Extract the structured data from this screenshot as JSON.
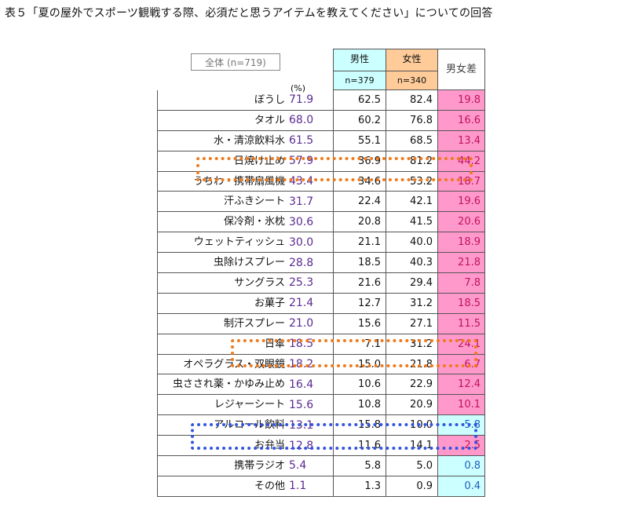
{
  "title": "表５「夏の屋外でスポーツ観戦する際、必須だと思うアイテムを教えてください」についての回答",
  "header": {
    "total": "全体 (n=719)",
    "pct": "(%)",
    "male": "男性",
    "male_n": "n=379",
    "female": "女性",
    "female_n": "n=340",
    "diff": "男女差"
  },
  "colors": {
    "male": "#ccffff",
    "female": "#ffcc99",
    "diff_pos": "#ff99cc",
    "diff_neg": "#ccffff",
    "highlight_orange": "#f07a1a",
    "highlight_blue": "#3355dd"
  },
  "chart_data": {
    "type": "table",
    "columns": [
      "全体",
      "男性",
      "女性",
      "男女差"
    ],
    "rows": [
      {
        "label": "ぼうし",
        "total": "71.9",
        "male": "62.5",
        "female": "82.4",
        "diff": "19.8",
        "sign": "pos"
      },
      {
        "label": "タオル",
        "total": "68.0",
        "male": "60.2",
        "female": "76.8",
        "diff": "16.6",
        "sign": "pos"
      },
      {
        "label": "水・清涼飲料水",
        "total": "61.5",
        "male": "55.1",
        "female": "68.5",
        "diff": "13.4",
        "sign": "pos"
      },
      {
        "label": "日焼け止め",
        "total": "57.9",
        "male": "36.9",
        "female": "81.2",
        "diff": "44.2",
        "sign": "pos"
      },
      {
        "label": "うちわ・携帯扇風機",
        "total": "43.4",
        "male": "34.6",
        "female": "53.2",
        "diff": "18.7",
        "sign": "pos"
      },
      {
        "label": "汗ふきシート",
        "total": "31.7",
        "male": "22.4",
        "female": "42.1",
        "diff": "19.6",
        "sign": "pos"
      },
      {
        "label": "保冷剤・氷枕",
        "total": "30.6",
        "male": "20.8",
        "female": "41.5",
        "diff": "20.6",
        "sign": "pos"
      },
      {
        "label": "ウェットティッシュ",
        "total": "30.0",
        "male": "21.1",
        "female": "40.0",
        "diff": "18.9",
        "sign": "pos"
      },
      {
        "label": "虫除けスプレー",
        "total": "28.8",
        "male": "18.5",
        "female": "40.3",
        "diff": "21.8",
        "sign": "pos"
      },
      {
        "label": "サングラス",
        "total": "25.3",
        "male": "21.6",
        "female": "29.4",
        "diff": "7.8",
        "sign": "pos"
      },
      {
        "label": "お菓子",
        "total": "21.4",
        "male": "12.7",
        "female": "31.2",
        "diff": "18.5",
        "sign": "pos"
      },
      {
        "label": "制汗スプレー",
        "total": "21.0",
        "male": "15.6",
        "female": "27.1",
        "diff": "11.5",
        "sign": "pos"
      },
      {
        "label": "日傘",
        "total": "18.5",
        "male": "7.1",
        "female": "31.2",
        "diff": "24.1",
        "sign": "pos"
      },
      {
        "label": "オペラグラス・双眼鏡",
        "total": "18.2",
        "male": "15.0",
        "female": "21.8",
        "diff": "6.7",
        "sign": "pos"
      },
      {
        "label": "虫さされ薬・かゆみ止め",
        "total": "16.4",
        "male": "10.6",
        "female": "22.9",
        "diff": "12.4",
        "sign": "pos"
      },
      {
        "label": "レジャーシート",
        "total": "15.6",
        "male": "10.8",
        "female": "20.9",
        "diff": "10.1",
        "sign": "pos"
      },
      {
        "label": "アルコール飲料",
        "total": "13.1",
        "male": "15.8",
        "female": "10.0",
        "diff": "5.8",
        "sign": "neg"
      },
      {
        "label": "お弁当",
        "total": "12.8",
        "male": "11.6",
        "female": "14.1",
        "diff": "2.5",
        "sign": "pos"
      },
      {
        "label": "携帯ラジオ",
        "total": "5.4",
        "male": "5.8",
        "female": "5.0",
        "diff": "0.8",
        "sign": "neg"
      },
      {
        "label": "その他",
        "total": "1.1",
        "male": "1.3",
        "female": "0.9",
        "diff": "0.4",
        "sign": "neg"
      }
    ],
    "highlighted_rows": [
      "日焼け止め",
      "日傘",
      "アルコール飲料"
    ]
  }
}
